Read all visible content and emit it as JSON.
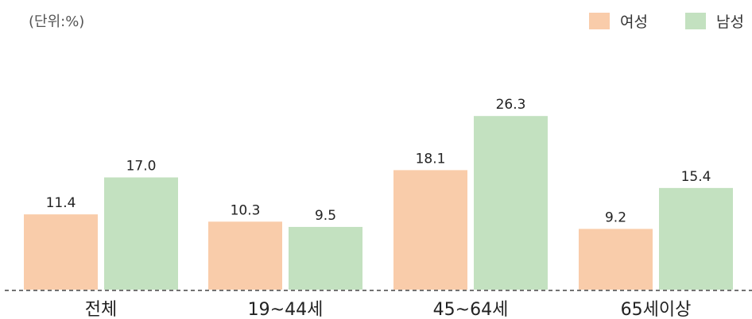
{
  "unit_label": "(단위:%)",
  "colors": {
    "female": "#F9CCAA",
    "male": "#C3E1C0",
    "baseline": "#444444"
  },
  "chart_data": {
    "type": "bar",
    "title": "",
    "unit": "(단위:%)",
    "categories": [
      "전체",
      "19~44세",
      "45~64세",
      "65세이상"
    ],
    "series": [
      {
        "name": "여성",
        "values": [
          11.4,
          10.3,
          18.1,
          9.2
        ]
      },
      {
        "name": "남성",
        "values": [
          17.0,
          9.5,
          26.3,
          15.4
        ]
      }
    ],
    "value_labels": [
      [
        "11.4",
        "10.3",
        "18.1",
        "9.2"
      ],
      [
        "17.0",
        "9.5",
        "26.3",
        "15.4"
      ]
    ],
    "ylim": [
      0,
      30
    ],
    "grid": false,
    "legend_position": "top-right"
  }
}
